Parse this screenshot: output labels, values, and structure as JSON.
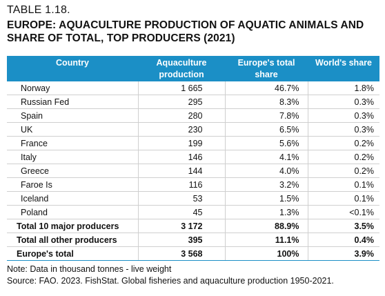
{
  "table_label": "TABLE 1.18.",
  "title": "EUROPE: AQUACULTURE PRODUCTION OF AQUATIC ANIMALS AND SHARE OF TOTAL, TOP PRODUCERS (2021)",
  "headers": [
    "Country",
    "Aquaculture production",
    "Europe's total share",
    "World's share"
  ],
  "rows": [
    [
      "Norway",
      "1 665",
      "46.7%",
      "1.8%"
    ],
    [
      "Russian Fed",
      "295",
      "8.3%",
      "0.3%"
    ],
    [
      "Spain",
      "280",
      "7.8%",
      "0.3%"
    ],
    [
      "UK",
      "230",
      "6.5%",
      "0.3%"
    ],
    [
      "France",
      "199",
      "5.6%",
      "0.2%"
    ],
    [
      "Italy",
      "146",
      "4.1%",
      "0.2%"
    ],
    [
      "Greece",
      "144",
      "4.0%",
      "0.2%"
    ],
    [
      "Faroe Is",
      "116",
      "3.2%",
      "0.1%"
    ],
    [
      "Iceland",
      "53",
      "1.5%",
      "0.1%"
    ],
    [
      "Poland",
      "45",
      "1.3%",
      "<0.1%"
    ]
  ],
  "totals": [
    [
      "Total 10 major producers",
      "3 172",
      "88.9%",
      "3.5%"
    ],
    [
      "Total all other producers",
      "395",
      "11.1%",
      "0.4%"
    ],
    [
      "Europe's total",
      "3 568",
      "100%",
      "3.9%"
    ]
  ],
  "notes": {
    "note": "Note: Data in thousand tonnes - live weight",
    "source": "Source: FAO. 2023. FishStat. Global fisheries and aquaculture production 1950-2021."
  }
}
